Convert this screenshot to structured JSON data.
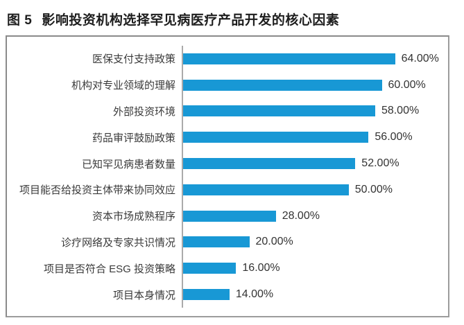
{
  "header": {
    "figure_label": "图 5",
    "title": "影响投资机构选择罕见病医疗产品开发的核心因素"
  },
  "chart_data": {
    "type": "bar",
    "orientation": "horizontal",
    "title": "图 5 影响投资机构选择罕见病医疗产品开发的核心因素",
    "categories": [
      "医保支付支持政策",
      "机构对专业领域的理解",
      "外部投资环境",
      "药品审评鼓励政策",
      "已知罕见病患者数量",
      "项目能否给投资主体带来协同效应",
      "资本市场成熟程序",
      "诊疗网络及专家共识情况",
      "项目是否符合 ESG 投资策略",
      "项目本身情况"
    ],
    "values": [
      64,
      60,
      58,
      56,
      52,
      50,
      28,
      20,
      16,
      14
    ],
    "value_labels": [
      "64.00%",
      "60.00%",
      "58.00%",
      "56.00%",
      "52.00%",
      "50.00%",
      "28.00%",
      "20.00%",
      "16.00%",
      "14.00%"
    ],
    "xlabel": "",
    "ylabel": "",
    "xlim": [
      0,
      80
    ],
    "grid": false,
    "legend": false,
    "bar_color": "#1898d5",
    "axis_line_color": "#aaaaaa",
    "frame_color": "#8a8a8a"
  }
}
